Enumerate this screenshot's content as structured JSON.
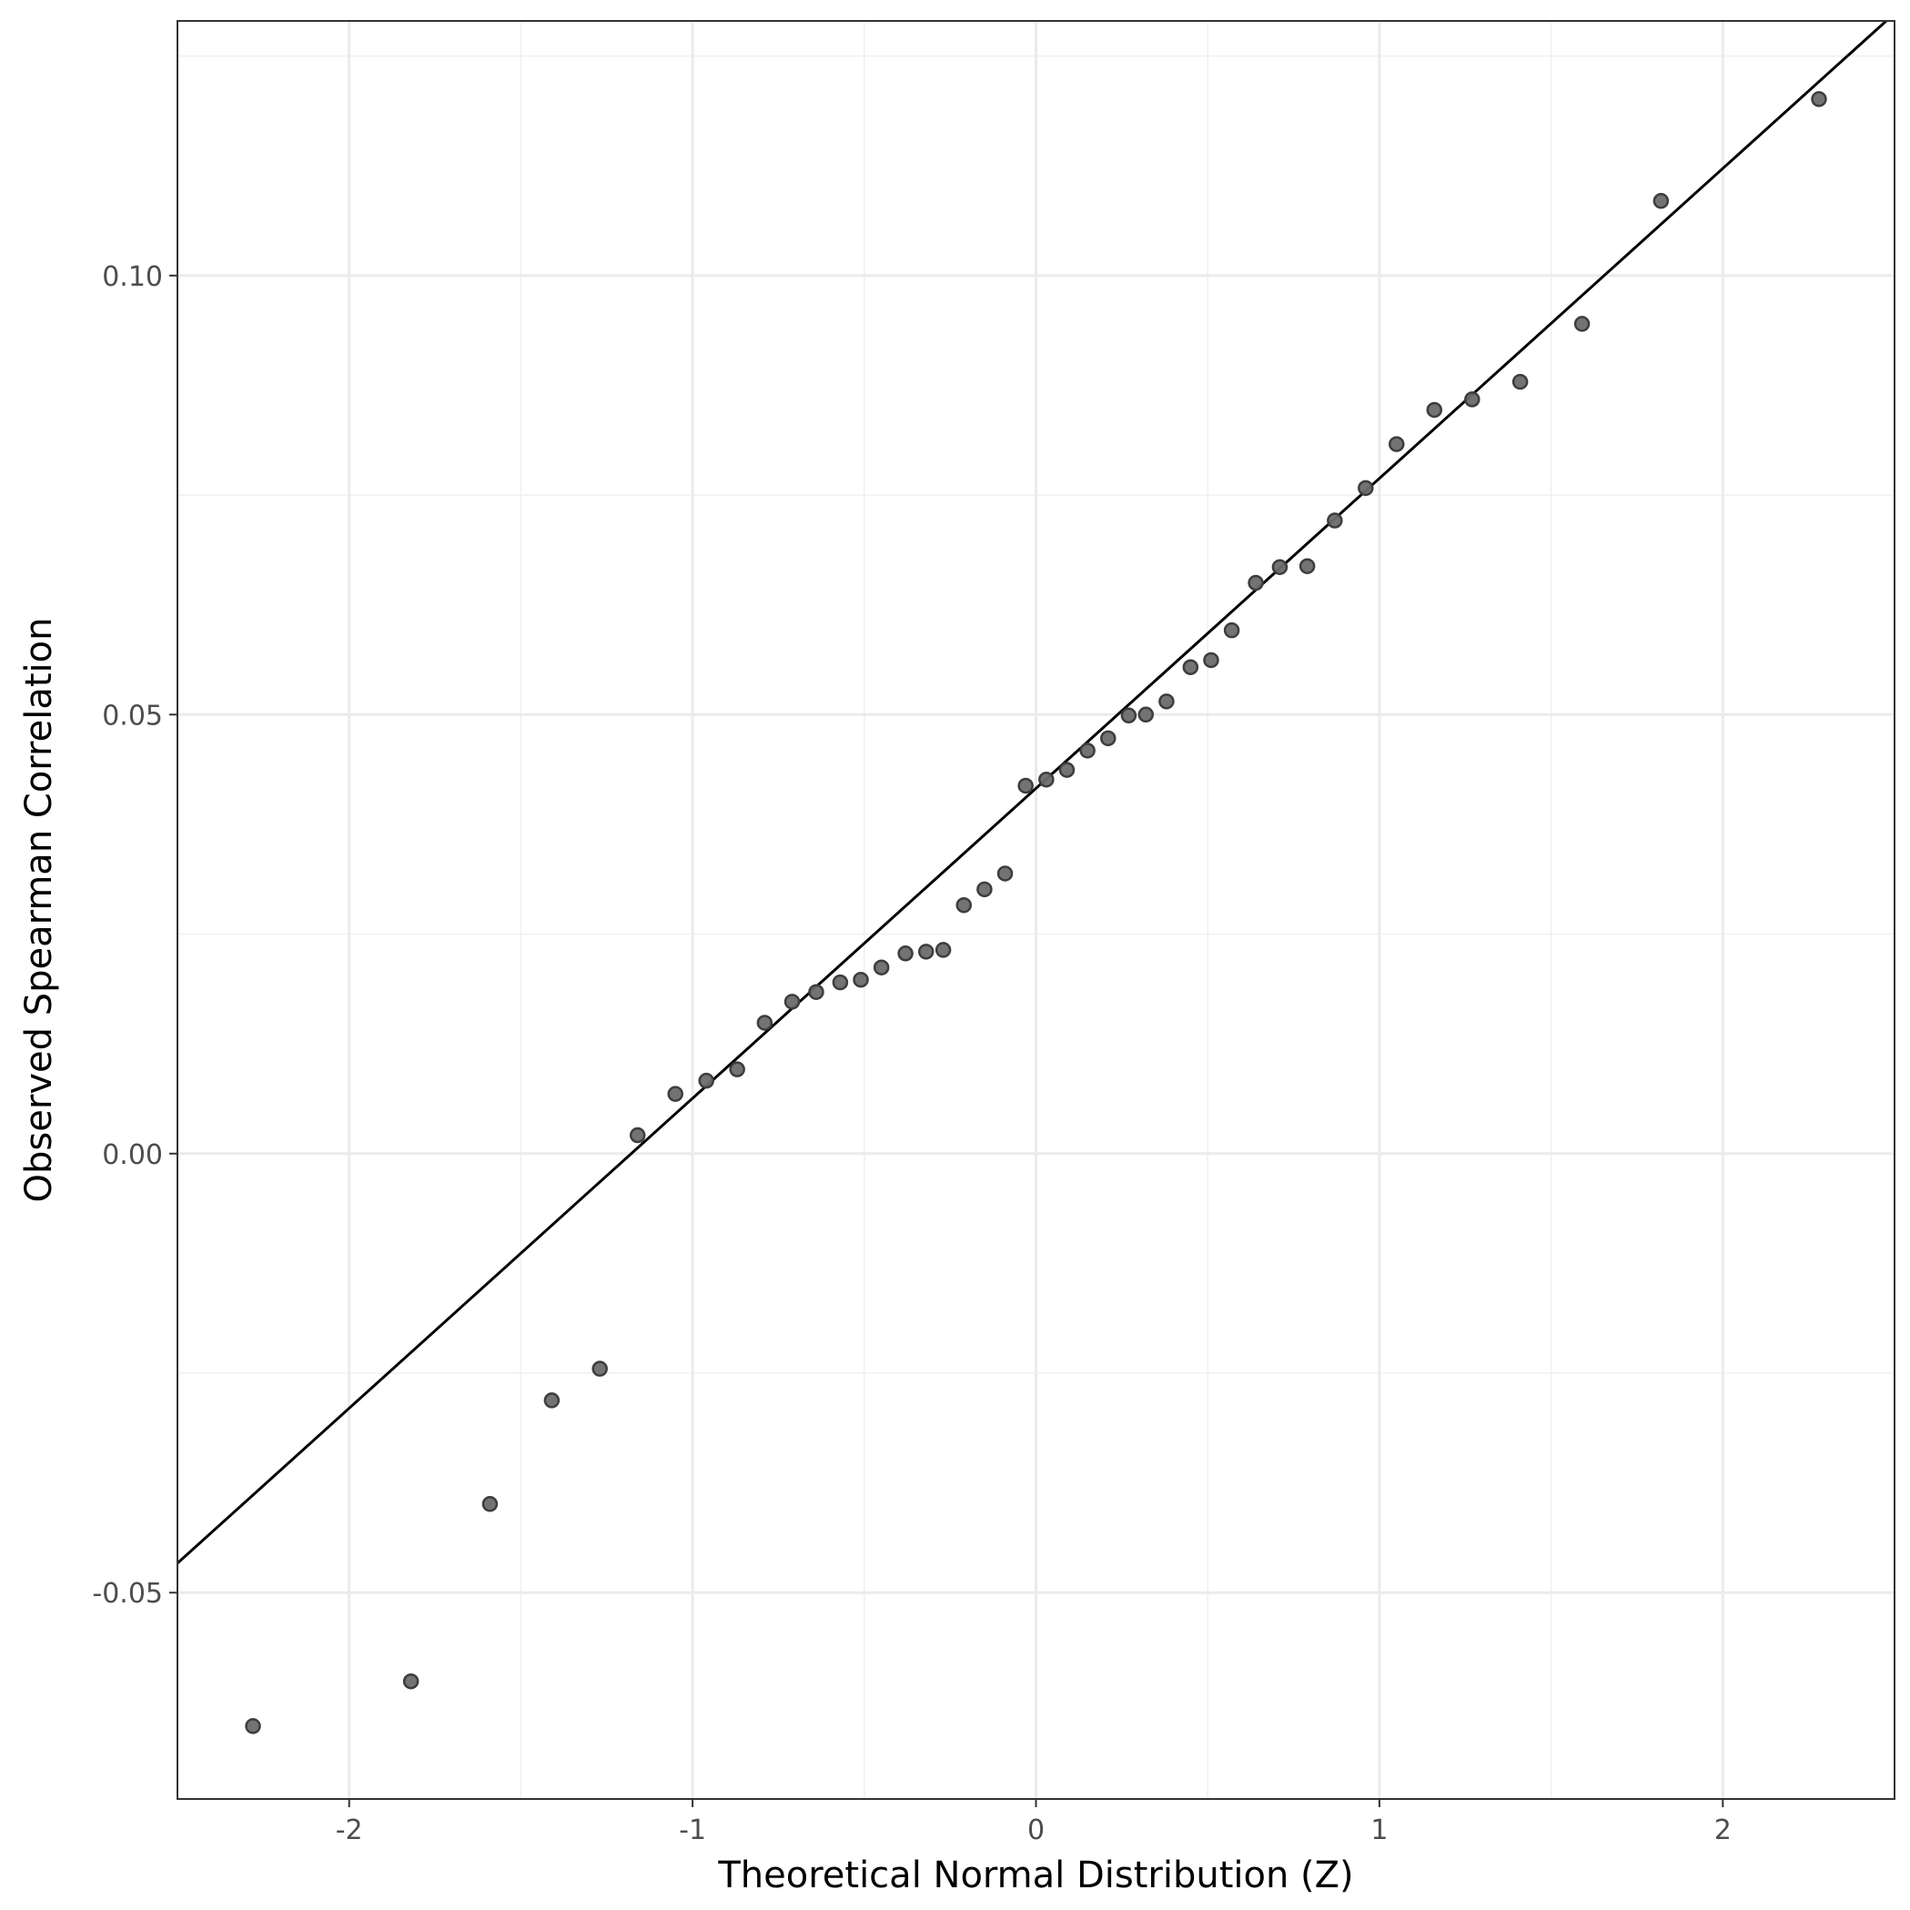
{
  "chart_data": {
    "type": "scatter",
    "title": "",
    "xlabel": "Theoretical Normal Distribution (Z)",
    "ylabel": "Observed Spearman Correlation",
    "xlim": [
      -2.5,
      2.5
    ],
    "ylim": [
      -0.0735,
      0.129
    ],
    "x_ticks": [
      -2,
      -1,
      0,
      1,
      2
    ],
    "x_tick_labels": [
      "-2",
      "-1",
      "0",
      "1",
      "2"
    ],
    "y_ticks": [
      -0.05,
      0.0,
      0.05,
      0.1
    ],
    "y_tick_labels": [
      "-0.05",
      "0.00",
      "0.05",
      "0.10"
    ],
    "grid": true,
    "reference_line": {
      "intercept": 0.0416,
      "slope": 0.0353
    },
    "point_color": "#6b6b6b",
    "line_color": "#000000",
    "series": [
      {
        "x": [
          -2.28,
          -1.82,
          -1.59,
          -1.41,
          -1.27,
          -1.16,
          -1.05,
          -0.96,
          -0.87,
          -0.79,
          -0.71,
          -0.64,
          -0.57,
          -0.51,
          -0.45,
          -0.38,
          -0.32,
          -0.27,
          -0.21,
          -0.15,
          -0.09,
          -0.03,
          0.03,
          0.09,
          0.15,
          0.21,
          0.27,
          0.32,
          0.38,
          0.45,
          0.51,
          0.57,
          0.64,
          0.71,
          0.79,
          0.87,
          0.96,
          1.05,
          1.16,
          1.27,
          1.41,
          1.59,
          1.82,
          2.28
        ],
        "y": [
          -0.0652,
          -0.0601,
          -0.0399,
          -0.0281,
          -0.0245,
          0.0021,
          0.0068,
          0.0083,
          0.0096,
          0.0149,
          0.0173,
          0.0184,
          0.0195,
          0.0198,
          0.0212,
          0.0228,
          0.023,
          0.0232,
          0.0283,
          0.0301,
          0.0319,
          0.0419,
          0.0426,
          0.0437,
          0.0459,
          0.0473,
          0.0499,
          0.05,
          0.0515,
          0.0554,
          0.0562,
          0.0596,
          0.065,
          0.0668,
          0.0669,
          0.0721,
          0.0758,
          0.0808,
          0.0847,
          0.0859,
          0.0879,
          0.0945,
          0.1085,
          0.1201
        ]
      }
    ]
  }
}
